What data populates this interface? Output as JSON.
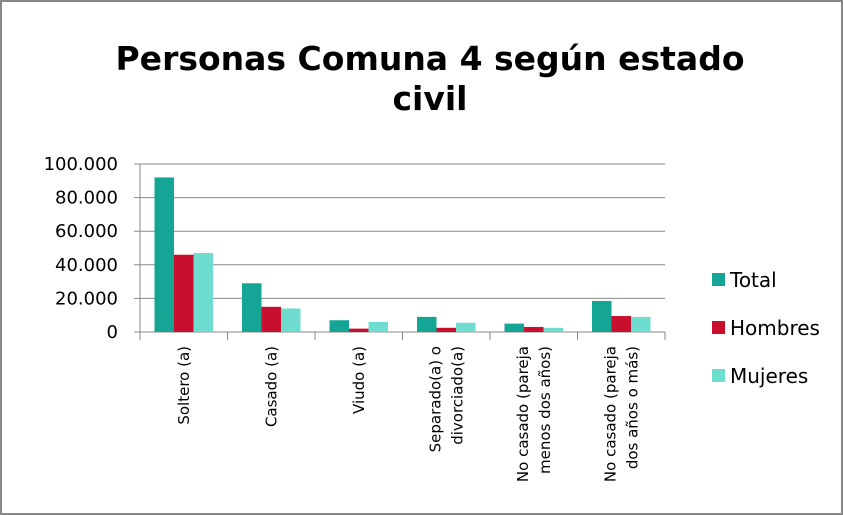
{
  "chart_data": {
    "type": "bar",
    "title": "Personas Comuna 4 según estado civil",
    "categories": [
      "Soltero (a)",
      "Casado (a)",
      "Viudo (a)",
      "Separado(a) o divorciado(a)",
      "No casado (pareja menos dos años)",
      "No casado (pareja dos años o más)"
    ],
    "series": [
      {
        "name": "Total",
        "color": "#14a595",
        "values": [
          92000,
          29000,
          7000,
          9000,
          5000,
          18500
        ]
      },
      {
        "name": "Hombres",
        "color": "#c8102e",
        "values": [
          46000,
          15000,
          2000,
          2500,
          3000,
          9500
        ]
      },
      {
        "name": "Mujeres",
        "color": "#6fdcd0",
        "values": [
          47000,
          14000,
          6000,
          5500,
          2500,
          9000
        ]
      }
    ],
    "ylim": [
      0,
      100000
    ],
    "yticks": [
      0,
      {
        "value": 20000,
        "label": "20.000"
      },
      {
        "value": 40000,
        "label": "40.000"
      },
      {
        "value": 60000,
        "label": "60.000"
      },
      {
        "value": 80000,
        "label": "80.000"
      },
      {
        "value": 100000,
        "label": "100.000"
      }
    ],
    "grid": true,
    "legend": "right"
  }
}
